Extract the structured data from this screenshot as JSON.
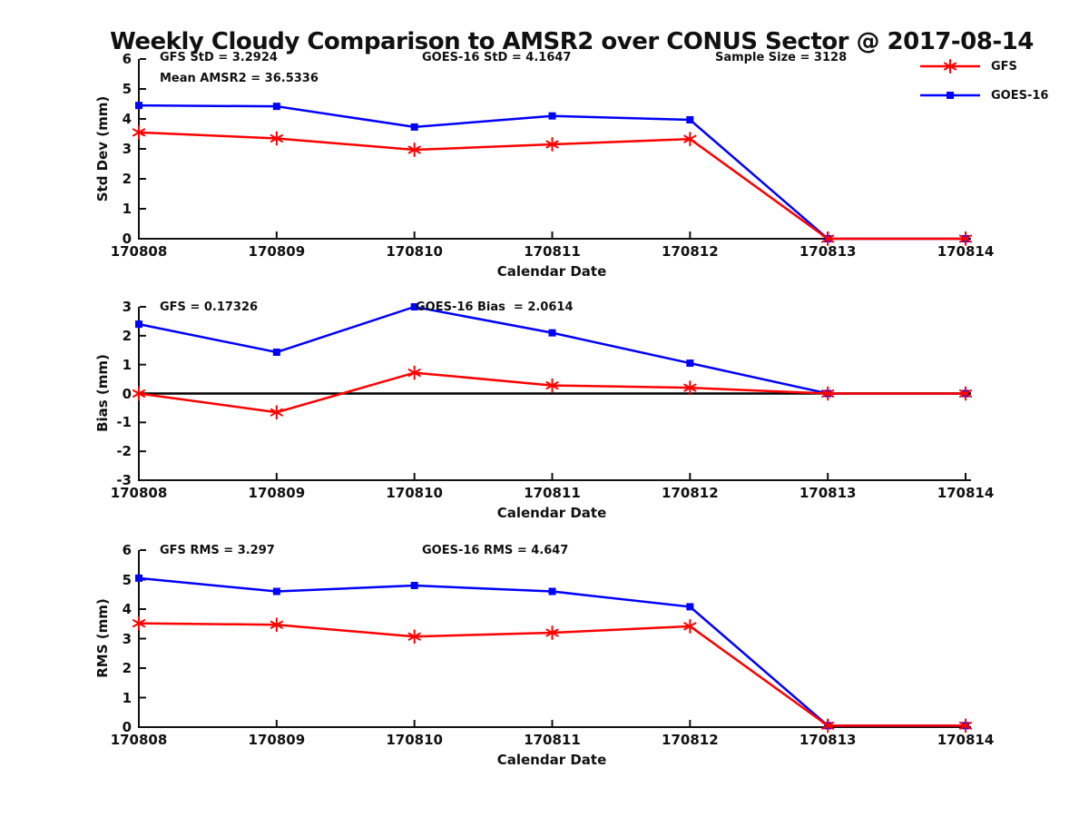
{
  "figure": {
    "title": "Weekly Cloudy Comparison to AMSR2 over CONUS Sector @ 2017-08-14",
    "background": "#ffffff",
    "text_color": "#111111",
    "axis_color": "#111111"
  },
  "legend": {
    "position": "top-right",
    "entries": [
      {
        "label": "GFS",
        "color": "#ff0000",
        "marker": "asterisk"
      },
      {
        "label": "GOES-16",
        "color": "#0000ff",
        "marker": "square"
      }
    ]
  },
  "chart_data": [
    {
      "type": "line",
      "panel": "std-dev",
      "xlabel": "Calendar Date",
      "ylabel": "Std Dev (mm)",
      "ylim": [
        0,
        6
      ],
      "yticks": [
        0,
        1,
        2,
        3,
        4,
        5,
        6
      ],
      "grid": false,
      "zero_line": false,
      "categories": [
        "170808",
        "170809",
        "170810",
        "170811",
        "170812",
        "170813",
        "170814"
      ],
      "annotations": [
        {
          "text": "GFS StD = 3.2924"
        },
        {
          "text": "Mean AMSR2 = 36.5336"
        },
        {
          "text": "GOES-16 StD = 4.1647"
        },
        {
          "text": "Sample Size = 3128"
        }
      ],
      "series": [
        {
          "name": "GOES-16",
          "color": "#0000ff",
          "marker": "square",
          "values": [
            4.45,
            4.42,
            3.73,
            4.1,
            3.97,
            0,
            0
          ]
        },
        {
          "name": "GFS",
          "color": "#ff0000",
          "marker": "asterisk",
          "values": [
            3.55,
            3.35,
            2.97,
            3.15,
            3.33,
            0,
            0
          ]
        }
      ]
    },
    {
      "type": "line",
      "panel": "bias",
      "xlabel": "Calendar Date",
      "ylabel": "Bias (mm)",
      "ylim": [
        -3,
        3
      ],
      "yticks": [
        -3,
        -2,
        -1,
        0,
        1,
        2,
        3
      ],
      "grid": false,
      "zero_line": true,
      "categories": [
        "170808",
        "170809",
        "170810",
        "170811",
        "170812",
        "170813",
        "170814"
      ],
      "annotations": [
        {
          "text": "GFS = 0.17326"
        },
        {
          "text": "GOES-16 Bias  = 2.0614"
        }
      ],
      "series": [
        {
          "name": "GOES-16",
          "color": "#0000ff",
          "marker": "square",
          "values": [
            2.4,
            1.43,
            3.0,
            2.1,
            1.05,
            0,
            0
          ]
        },
        {
          "name": "GFS",
          "color": "#ff0000",
          "marker": "asterisk",
          "values": [
            0.0,
            -0.65,
            0.72,
            0.28,
            0.2,
            0,
            0
          ]
        }
      ]
    },
    {
      "type": "line",
      "panel": "rms",
      "xlabel": "Calendar Date",
      "ylabel": "RMS (mm)",
      "ylim": [
        0,
        6
      ],
      "yticks": [
        0,
        1,
        2,
        3,
        4,
        5,
        6
      ],
      "grid": false,
      "zero_line": false,
      "categories": [
        "170808",
        "170809",
        "170810",
        "170811",
        "170812",
        "170813",
        "170814"
      ],
      "annotations": [
        {
          "text": "GFS RMS = 3.297"
        },
        {
          "text": "GOES-16 RMS = 4.647"
        }
      ],
      "series": [
        {
          "name": "GOES-16",
          "color": "#0000ff",
          "marker": "square",
          "values": [
            5.05,
            4.6,
            4.8,
            4.6,
            4.08,
            0.05,
            0.05
          ]
        },
        {
          "name": "GFS",
          "color": "#ff0000",
          "marker": "asterisk",
          "values": [
            3.52,
            3.47,
            3.07,
            3.2,
            3.42,
            0.05,
            0.05
          ]
        }
      ]
    }
  ]
}
